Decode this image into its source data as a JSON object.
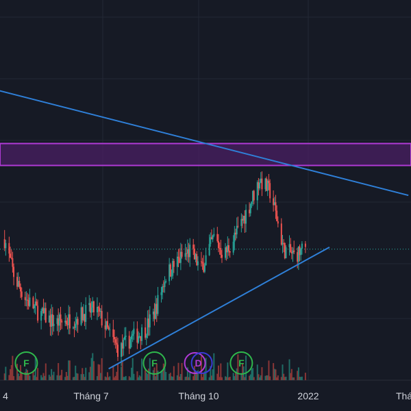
{
  "colors": {
    "background": "#161a25",
    "grid": "#232835",
    "up": "#26a69a",
    "down": "#ef5350",
    "volume_up": "#1f6d66",
    "volume_down": "#8a3636",
    "trendline": "#2f80d9",
    "zone_border": "#b03ad6",
    "zone_fill": "#4a1f63",
    "price_line": "#2bb3a5",
    "earnings": "#2fb84c",
    "dividend_purple": "#b03ad6",
    "dividend_blue": "#3b3bd6"
  },
  "chart_data": {
    "type": "candlestick",
    "x_ticks": [
      "4",
      "Tháng 7",
      "Tháng 10",
      "2022",
      "Thá"
    ],
    "zone": {
      "label": "resistance-zone",
      "top": 41.3,
      "bottom": 40.2
    },
    "current_price": 36.0,
    "y_range": [
      27.0,
      48.5
    ],
    "trendlines": [
      {
        "name": "descending-trendline",
        "points": [
          [
            "2021-01-15",
            45.0
          ],
          [
            "2022-03-20",
            38.7
          ]
        ]
      },
      {
        "name": "ascending-trendline",
        "points": [
          [
            "2021-07-01",
            30.0
          ],
          [
            "2022-01-10",
            36.1
          ]
        ]
      }
    ],
    "events": [
      {
        "letter": "F",
        "kind": "earnings",
        "date": "2021-04-20"
      },
      {
        "letter": "F",
        "kind": "earnings",
        "date": "2021-08-10"
      },
      {
        "letter": "D",
        "kind": "dividend",
        "date": "2021-09-18"
      },
      {
        "letter": "F",
        "kind": "earnings",
        "date": "2021-10-25"
      }
    ],
    "anchors": [
      [
        "2021-04-01",
        36.5
      ],
      [
        "2021-04-10",
        34.5
      ],
      [
        "2021-04-20",
        33.5
      ],
      [
        "2021-05-01",
        32.8
      ],
      [
        "2021-05-15",
        32.3
      ],
      [
        "2021-06-01",
        32.5
      ],
      [
        "2021-06-10",
        32.8
      ],
      [
        "2021-06-20",
        33.0
      ],
      [
        "2021-07-01",
        31.8
      ],
      [
        "2021-07-10",
        30.9
      ],
      [
        "2021-07-20",
        31.5
      ],
      [
        "2021-08-01",
        31.9
      ],
      [
        "2021-08-10",
        32.8
      ],
      [
        "2021-08-20",
        34.7
      ],
      [
        "2021-09-01",
        35.5
      ],
      [
        "2021-09-10",
        35.9
      ],
      [
        "2021-09-20",
        35.0
      ],
      [
        "2021-10-01",
        36.6
      ],
      [
        "2021-10-10",
        35.7
      ],
      [
        "2021-10-20",
        36.7
      ],
      [
        "2021-11-01",
        38.2
      ],
      [
        "2021-11-10",
        39.5
      ],
      [
        "2021-11-20",
        38.8
      ],
      [
        "2021-12-01",
        36.0
      ],
      [
        "2021-12-10",
        35.7
      ],
      [
        "2021-12-20",
        36.0
      ]
    ]
  }
}
